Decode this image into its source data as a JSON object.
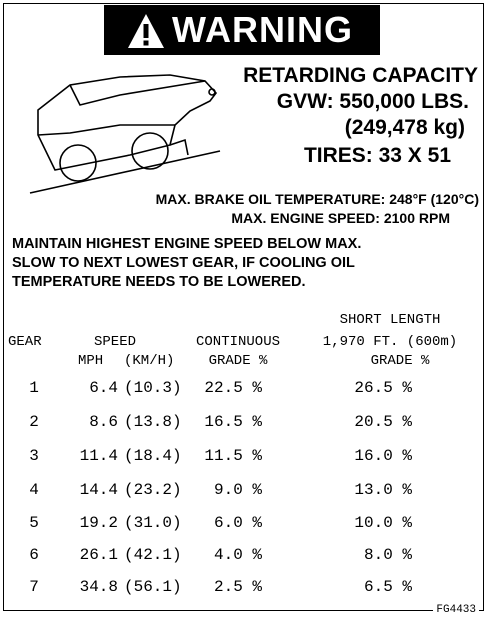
{
  "header": {
    "title": "WARNING"
  },
  "capacity": {
    "heading": "RETARDING CAPACITY",
    "gvw": "GVW: 550,000 LBS.",
    "gvw_metric": "(249,478 kg)",
    "tires": "TIRES: 33 X 51"
  },
  "limits": {
    "brake_oil_temp": "MAX. BRAKE OIL TEMPERATURE: 248°F (120°C)",
    "engine_speed": "MAX. ENGINE SPEED: 2100 RPM"
  },
  "instructions": [
    "MAINTAIN HIGHEST ENGINE SPEED BELOW MAX.",
    "SLOW TO NEXT LOWEST GEAR, IF COOLING OIL",
    "TEMPERATURE NEEDS TO BE LOWERED."
  ],
  "table": {
    "headers": {
      "gear": "GEAR",
      "speed": "SPEED",
      "mph": "MPH",
      "kmh": "(KM/H)",
      "continuous": "CONTINUOUS",
      "continuous_grade": "GRADE %",
      "short_length": "SHORT LENGTH",
      "short_distance": "1,970 FT. (600m)",
      "short_grade": "GRADE %"
    },
    "rows": [
      [
        "1",
        "6.4",
        "(10.3)",
        "22.5 %",
        "26.5 %"
      ],
      [
        "2",
        "8.6",
        "(13.8)",
        "16.5 %",
        "20.5 %"
      ],
      [
        "3",
        "11.4",
        "(18.4)",
        "11.5 %",
        "16.0 %"
      ],
      [
        "4",
        "14.4",
        "(23.2)",
        "9.0 %",
        "13.0 %"
      ],
      [
        "5",
        "19.2",
        "(31.0)",
        "6.0 %",
        "10.0 %"
      ],
      [
        "6",
        "26.1",
        "(42.1)",
        "4.0 %",
        "8.0 %"
      ],
      [
        "7",
        "34.8",
        "(56.1)",
        "2.5 %",
        "6.5 %"
      ]
    ]
  },
  "footer": "FG4433"
}
